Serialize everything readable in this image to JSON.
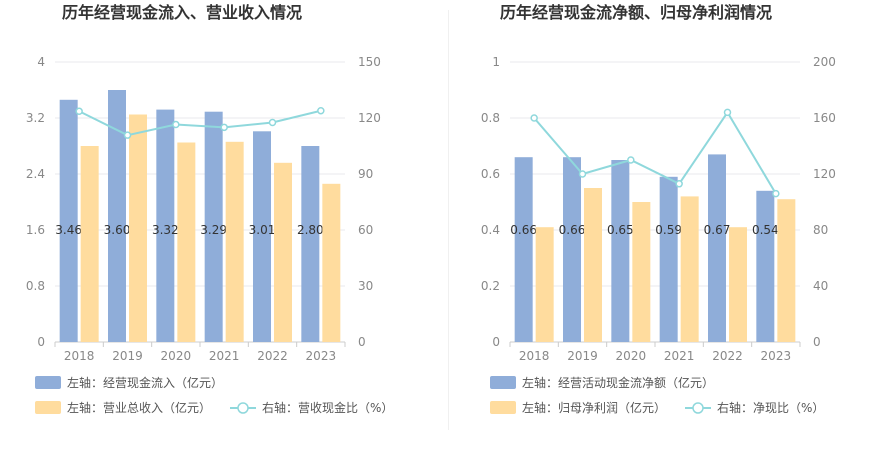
{
  "chart_data": [
    {
      "type": "bar",
      "title": "历年经营现金流入、营业收入情况",
      "categories": [
        "2018",
        "2019",
        "2020",
        "2021",
        "2022",
        "2023"
      ],
      "left_axis": {
        "ylim": [
          0,
          4
        ],
        "ticks": [
          "0",
          "0.8",
          "1.6",
          "2.4",
          "3.2",
          "4"
        ]
      },
      "right_axis": {
        "ylim": [
          0,
          150
        ],
        "ticks": [
          "0",
          "30",
          "60",
          "90",
          "120",
          "150"
        ]
      },
      "series": [
        {
          "name": "左轴：经营现金流入（亿元）",
          "type": "bar",
          "axis": "left",
          "color": "#8fadd9",
          "values": [
            3.46,
            3.6,
            3.32,
            3.29,
            3.01,
            2.8
          ],
          "labels": [
            "3.46",
            "3.60",
            "3.32",
            "3.29",
            "3.01",
            "2.80"
          ]
        },
        {
          "name": "左轴：营业总收入（亿元）",
          "type": "bar",
          "axis": "left",
          "color": "#ffdc9e",
          "values": [
            2.8,
            3.25,
            2.85,
            2.86,
            2.56,
            2.26
          ]
        },
        {
          "name": "右轴：营收现金比（%）",
          "type": "line",
          "axis": "right",
          "color": "#8fd8dc",
          "values": [
            123.6,
            110.8,
            116.5,
            115.0,
            117.6,
            123.9
          ]
        }
      ]
    },
    {
      "type": "bar",
      "title": "历年经营现金流净额、归母净利润情况",
      "categories": [
        "2018",
        "2019",
        "2020",
        "2021",
        "2022",
        "2023"
      ],
      "left_axis": {
        "ylim": [
          0,
          1
        ],
        "ticks": [
          "0",
          "0.2",
          "0.4",
          "0.6",
          "0.8",
          "1"
        ]
      },
      "right_axis": {
        "ylim": [
          0,
          200
        ],
        "ticks": [
          "0",
          "40",
          "80",
          "120",
          "160",
          "200"
        ]
      },
      "series": [
        {
          "name": "左轴：经营活动现金流净额（亿元）",
          "type": "bar",
          "axis": "left",
          "color": "#8fadd9",
          "values": [
            0.66,
            0.66,
            0.65,
            0.59,
            0.67,
            0.54
          ],
          "labels": [
            "0.66",
            "0.66",
            "0.65",
            "0.59",
            "0.67",
            "0.54"
          ]
        },
        {
          "name": "左轴：归母净利润（亿元）",
          "type": "bar",
          "axis": "left",
          "color": "#ffdc9e",
          "values": [
            0.41,
            0.55,
            0.5,
            0.52,
            0.41,
            0.51
          ]
        },
        {
          "name": "右轴：净现比（%）",
          "type": "line",
          "axis": "right",
          "color": "#8fd8dc",
          "values": [
            160.0,
            120.0,
            130.0,
            113.0,
            164.0,
            106.0
          ]
        }
      ]
    }
  ]
}
